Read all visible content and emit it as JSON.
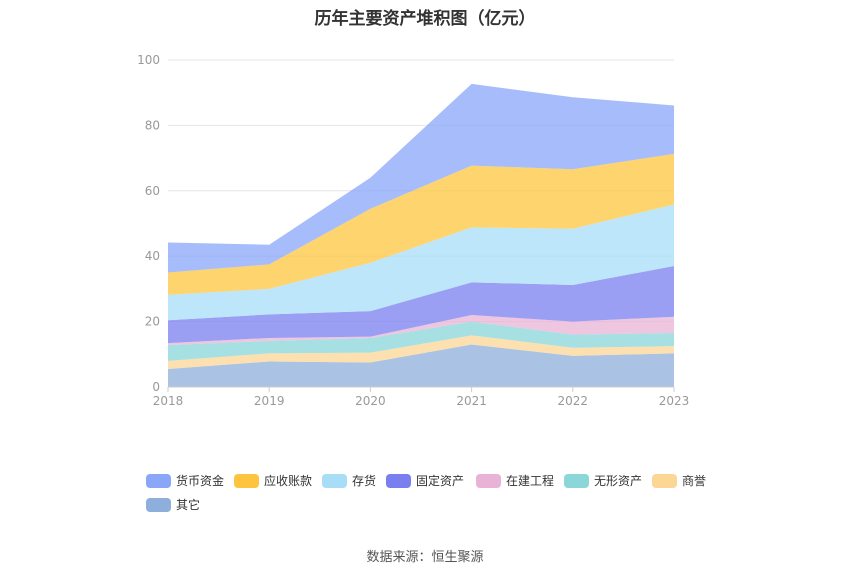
{
  "title": "历年主要资产堆积图（亿元）",
  "source": "数据来源：恒生聚源",
  "chart_data": {
    "type": "area",
    "stacked": true,
    "title": "历年主要资产堆积图（亿元）",
    "xlabel": "",
    "ylabel": "",
    "categories": [
      "2018",
      "2019",
      "2020",
      "2021",
      "2022",
      "2023"
    ],
    "ylim": [
      0,
      100
    ],
    "yticks": [
      0,
      20,
      40,
      60,
      80,
      100
    ],
    "grid": true,
    "legend_position": "bottom",
    "series": [
      {
        "name": "其它",
        "color": "#8eaedb",
        "values": [
          5.5,
          7.8,
          7.5,
          13.0,
          9.5,
          10.3
        ]
      },
      {
        "name": "商誉",
        "color": "#fcd694",
        "values": [
          2.5,
          2.5,
          3.0,
          2.8,
          2.5,
          2.2
        ]
      },
      {
        "name": "无形资产",
        "color": "#8ad6d8",
        "values": [
          4.8,
          3.8,
          4.5,
          4.2,
          4.0,
          4.0
        ]
      },
      {
        "name": "在建工程",
        "color": "#e8b3d6",
        "values": [
          0.6,
          0.9,
          0.4,
          2.0,
          4.0,
          5.0
        ]
      },
      {
        "name": "固定资产",
        "color": "#7a7ff0",
        "values": [
          7.0,
          7.2,
          7.8,
          10.0,
          11.2,
          15.5
        ]
      },
      {
        "name": "存货",
        "color": "#a8ddf8",
        "values": [
          7.8,
          7.8,
          14.8,
          16.8,
          17.2,
          18.8
        ]
      },
      {
        "name": "应收账款",
        "color": "#fdc53f",
        "values": [
          6.8,
          7.5,
          16.5,
          18.9,
          18.2,
          15.5
        ]
      },
      {
        "name": "货币资金",
        "color": "#8aa6f9",
        "values": [
          9.2,
          6.0,
          9.5,
          25.0,
          22.0,
          14.8
        ]
      }
    ],
    "legend_order": [
      "货币资金",
      "应收账款",
      "存货",
      "固定资产",
      "在建工程",
      "无形资产",
      "商誉",
      "其它"
    ]
  }
}
